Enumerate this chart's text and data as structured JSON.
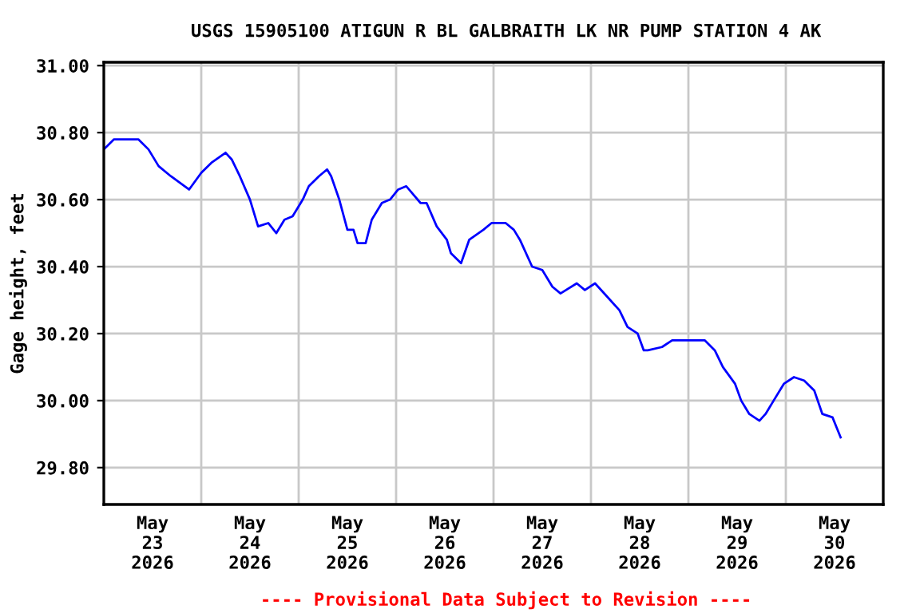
{
  "chart_data": {
    "type": "line",
    "title": "USGS 15905100 ATIGUN R BL GALBRAITH LK NR PUMP STATION 4 AK",
    "ylabel": "Gage height, feet",
    "annotations": [
      "---- Provisional Data Subject to Revision ----"
    ],
    "x": [
      "2026-05-23T00:00",
      "2026-05-23T02:30",
      "2026-05-23T08:30",
      "2026-05-23T11:00",
      "2026-05-23T13:30",
      "2026-05-23T16:30",
      "2026-05-23T21:00",
      "2026-05-24T00:00",
      "2026-05-24T02:30",
      "2026-05-24T06:00",
      "2026-05-24T07:30",
      "2026-05-24T09:30",
      "2026-05-24T12:00",
      "2026-05-24T14:00",
      "2026-05-24T16:30",
      "2026-05-24T18:30",
      "2026-05-24T20:30",
      "2026-05-24T22:30",
      "2026-05-25T01:00",
      "2026-05-25T02:30",
      "2026-05-25T05:00",
      "2026-05-25T07:00",
      "2026-05-25T08:00",
      "2026-05-25T10:00",
      "2026-05-25T12:00",
      "2026-05-25T13:30",
      "2026-05-25T14:30",
      "2026-05-25T16:30",
      "2026-05-25T18:00",
      "2026-05-25T20:30",
      "2026-05-25T22:30",
      "2026-05-26T00:30",
      "2026-05-26T02:30",
      "2026-05-26T06:00",
      "2026-05-26T07:30",
      "2026-05-26T10:00",
      "2026-05-26T12:30",
      "2026-05-26T13:30",
      "2026-05-26T16:00",
      "2026-05-26T18:00",
      "2026-05-26T21:30",
      "2026-05-26T23:30",
      "2026-05-27T03:00",
      "2026-05-27T05:00",
      "2026-05-27T06:30",
      "2026-05-27T09:30",
      "2026-05-27T12:00",
      "2026-05-27T14:30",
      "2026-05-27T16:30",
      "2026-05-27T20:30",
      "2026-05-27T22:30",
      "2026-05-28T01:00",
      "2026-05-28T04:00",
      "2026-05-28T07:00",
      "2026-05-28T09:00",
      "2026-05-28T11:30",
      "2026-05-28T13:00",
      "2026-05-28T14:00",
      "2026-05-28T17:30",
      "2026-05-28T20:00",
      "2026-05-28T23:30",
      "2026-05-29T04:00",
      "2026-05-29T06:30",
      "2026-05-29T08:30",
      "2026-05-29T11:30",
      "2026-05-29T13:00",
      "2026-05-29T15:00",
      "2026-05-29T17:30",
      "2026-05-29T19:00",
      "2026-05-29T21:00",
      "2026-05-29T23:30",
      "2026-05-30T02:00",
      "2026-05-30T04:30",
      "2026-05-30T07:00",
      "2026-05-30T09:00",
      "2026-05-30T11:30",
      "2026-05-30T12:30",
      "2026-05-30T13:30"
    ],
    "series": [
      {
        "color": "#0000ff",
        "values": [
          30.75,
          30.78,
          30.78,
          30.75,
          30.7,
          30.67,
          30.63,
          30.68,
          30.71,
          30.74,
          30.72,
          30.67,
          30.6,
          30.52,
          30.53,
          30.5,
          30.54,
          30.55,
          30.6,
          30.64,
          30.67,
          30.69,
          30.67,
          30.6,
          30.51,
          30.51,
          30.47,
          30.47,
          30.54,
          30.59,
          30.6,
          30.63,
          30.64,
          30.59,
          30.59,
          30.52,
          30.48,
          30.44,
          30.41,
          30.48,
          30.51,
          30.53,
          30.53,
          30.51,
          30.48,
          30.4,
          30.39,
          30.34,
          30.32,
          30.35,
          30.33,
          30.35,
          30.31,
          30.27,
          30.22,
          30.2,
          30.15,
          30.15,
          30.16,
          30.18,
          30.18,
          30.18,
          30.15,
          30.1,
          30.05,
          30.0,
          29.96,
          29.94,
          29.96,
          30.0,
          30.05,
          30.07,
          30.06,
          30.03,
          29.96,
          29.95,
          29.92,
          29.89
        ]
      }
    ],
    "xlim": [
      "2026-05-23",
      "2026-05-31"
    ],
    "xticks": [
      {
        "value": "2026-05-23T12:00",
        "label": "May\n23\n2026"
      },
      {
        "value": "2026-05-24T12:00",
        "label": "May\n24\n2026"
      },
      {
        "value": "2026-05-25T12:00",
        "label": "May\n25\n2026"
      },
      {
        "value": "2026-05-26T12:00",
        "label": "May\n26\n2026"
      },
      {
        "value": "2026-05-27T12:00",
        "label": "May\n27\n2026"
      },
      {
        "value": "2026-05-28T12:00",
        "label": "May\n28\n2026"
      },
      {
        "value": "2026-05-29T12:00",
        "label": "May\n29\n2026"
      },
      {
        "value": "2026-05-30T12:00",
        "label": "May\n30\n2026"
      },
      {
        "value": "2026-05-24",
        "label": null
      },
      {
        "value": "2026-05-25",
        "label": null
      },
      {
        "value": "2026-05-26",
        "label": null
      },
      {
        "value": "2026-05-27",
        "label": null
      },
      {
        "value": "2026-05-28",
        "label": null
      },
      {
        "value": "2026-05-29",
        "label": null
      },
      {
        "value": "2026-05-30",
        "label": null
      }
    ],
    "ylim": [
      29.69,
      31.01
    ],
    "yticks": [
      {
        "value": 29.8,
        "label": "29.80"
      },
      {
        "value": 30.0,
        "label": "30.00"
      },
      {
        "value": 30.2,
        "label": "30.20"
      },
      {
        "value": 30.4,
        "label": "30.40"
      },
      {
        "value": 30.6,
        "label": "30.60"
      },
      {
        "value": 30.8,
        "label": "30.80"
      },
      {
        "value": 31.0,
        "label": "31.00"
      }
    ],
    "grid": true,
    "line_style": "solid",
    "marker": "none",
    "legend": false
  }
}
